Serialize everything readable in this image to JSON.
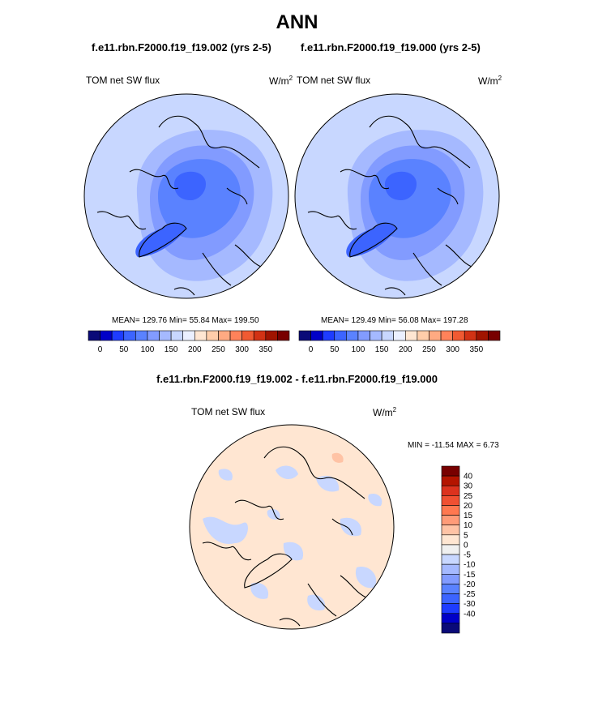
{
  "page": {
    "title": "ANN",
    "diff_title": "f.e11.rbn.F2000.f19_f19.002 - f.e11.rbn.F2000.f19_f19.000"
  },
  "colors": {
    "main_scale": [
      "#0a0a78",
      "#0000c8",
      "#1e3cff",
      "#3c64ff",
      "#5a82ff",
      "#829bff",
      "#a5b9ff",
      "#c8d7ff",
      "#ebf0ff",
      "#ffe6d2",
      "#ffcdaa",
      "#ffaa82",
      "#ff825a",
      "#f05a32",
      "#d23214",
      "#a01400",
      "#780000"
    ],
    "diff_scale": [
      "#780000",
      "#b41400",
      "#dc321e",
      "#f05032",
      "#ff7850",
      "#ff9b78",
      "#ffc3a5",
      "#ffe6d2",
      "#f0f0f0",
      "#c8d7ff",
      "#a5b9ff",
      "#829bff",
      "#5a82ff",
      "#3c64ff",
      "#1e3cff",
      "#0000c8",
      "#0a0a78"
    ],
    "ocean_fill": "#d2e6ff",
    "coast": "#000000"
  },
  "panels": [
    {
      "case": "f.e11.rbn.F2000.f19_f19.002 (yrs 2-5)",
      "variable": "TOM net SW flux",
      "units": "W/m",
      "units_exp": "2",
      "stats": "MEAN= 129.76  Min=  55.84  Max= 199.50",
      "colorbar_ticks": [
        "0",
        "50",
        "100",
        "150",
        "200",
        "250",
        "300",
        "350"
      ]
    },
    {
      "case": "f.e11.rbn.F2000.f19_f19.000 (yrs 2-5)",
      "variable": "TOM net SW flux",
      "units": "W/m",
      "units_exp": "2",
      "stats": "MEAN= 129.49  Min=  56.08  Max= 197.28",
      "colorbar_ticks": [
        "0",
        "50",
        "100",
        "150",
        "200",
        "250",
        "300",
        "350"
      ]
    }
  ],
  "diff_panel": {
    "variable": "TOM net SW flux",
    "units": "W/m",
    "units_exp": "2",
    "stats": "MIN = -11.54 MAX =   6.73",
    "colorbar_ticks": [
      "40",
      "30",
      "25",
      "20",
      "15",
      "10",
      "5",
      "0",
      "-5",
      "-10",
      "-15",
      "-20",
      "-25",
      "-30",
      "-40"
    ]
  }
}
